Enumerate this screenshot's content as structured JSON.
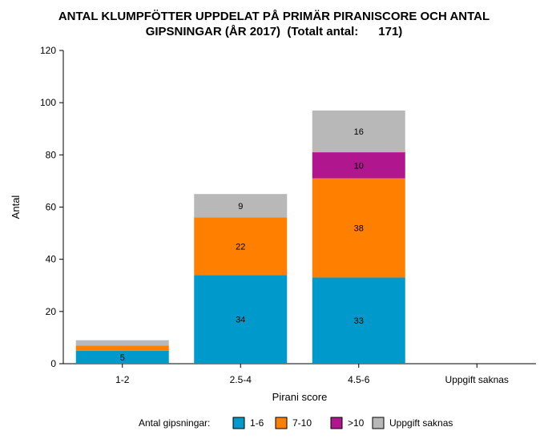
{
  "chart_data": {
    "type": "bar",
    "stacked": true,
    "title_line1": "ANTAL KLUMPFÖTTER UPPDELAT PÅ PRIMÄR PIRANISCORE OCH ANTAL",
    "title_line2": "GIPSNINGAR (ÅR 2017)  (Totalt antal:      171)",
    "xlabel": "Pirani score",
    "ylabel": "Antal",
    "ylim": [
      0,
      120
    ],
    "yticks": [
      "0",
      "20",
      "40",
      "60",
      "80",
      "100",
      "120"
    ],
    "categories": [
      "1-2",
      "2.5-4",
      "4.5-6",
      "Uppgift saknas"
    ],
    "legend_title": "Antal gipsningar:",
    "legend_position": "bottom",
    "series": [
      {
        "name": "1-6",
        "color": "#0099CC",
        "values": [
          5,
          34,
          33,
          0
        ],
        "labels": [
          "5",
          "34",
          "33",
          ""
        ]
      },
      {
        "name": "7-10",
        "color": "#FF8000",
        "values": [
          2,
          22,
          38,
          0
        ],
        "labels": [
          "",
          "22",
          "38",
          ""
        ]
      },
      {
        "name": ">10",
        "color": "#B0168E",
        "values": [
          0,
          0,
          10,
          0
        ],
        "labels": [
          "",
          "",
          "10",
          ""
        ]
      },
      {
        "name": "Uppgift saknas",
        "color": "#B8B8B8",
        "values": [
          2,
          9,
          16,
          0
        ],
        "labels": [
          "",
          "9",
          "16",
          ""
        ]
      }
    ]
  }
}
